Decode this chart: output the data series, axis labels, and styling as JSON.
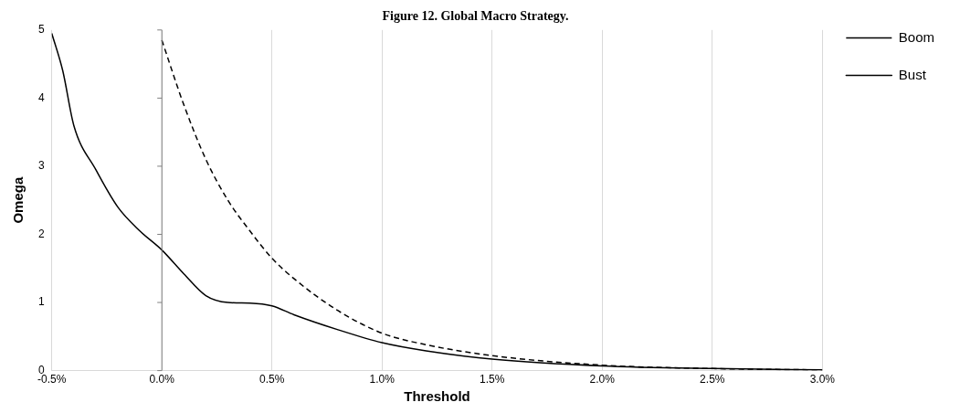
{
  "chart_data": {
    "type": "line",
    "title": "Figure 12. Global Macro Strategy.",
    "xlabel": "Threshold",
    "ylabel": "Omega",
    "xlim": [
      -0.5,
      3.0
    ],
    "xticks": [
      {
        "value": -0.5,
        "label": "-0.5%"
      },
      {
        "value": 0,
        "label": "0.0%"
      },
      {
        "value": 0.5,
        "label": "0.5%"
      },
      {
        "value": 1,
        "label": "1.0%"
      },
      {
        "value": 1.5,
        "label": "1.5%"
      },
      {
        "value": 2,
        "label": "2.0%"
      },
      {
        "value": 2.5,
        "label": "2.5%"
      },
      {
        "value": 3,
        "label": "3.0%"
      }
    ],
    "ylim": [
      0,
      5
    ],
    "yticks": [
      0,
      1,
      2,
      3,
      4,
      5
    ],
    "grid": "x",
    "legend": "top right",
    "marker": "none",
    "ref_lines": [
      {
        "axis": "x",
        "value": 0,
        "color": "#808080"
      }
    ],
    "series": [
      {
        "name": "Boom",
        "color": "#000000",
        "line_style": "dashed",
        "x": [
          0,
          0.1,
          0.2,
          0.3,
          0.4,
          0.5,
          0.6,
          0.8,
          1.0,
          1.2,
          1.5,
          2.0,
          2.5,
          3.0
        ],
        "values": [
          4.85,
          3.9,
          3.1,
          2.5,
          2.05,
          1.65,
          1.35,
          0.88,
          0.55,
          0.38,
          0.22,
          0.08,
          0.03,
          0.01
        ]
      },
      {
        "name": "Bust",
        "color": "#000000",
        "line_style": "solid",
        "x": [
          -0.5,
          -0.45,
          -0.4,
          -0.3,
          -0.2,
          -0.1,
          0,
          0.1,
          0.2,
          0.3,
          0.4,
          0.5,
          0.6,
          0.8,
          1.0,
          1.2,
          1.5,
          2.0,
          2.5,
          3.0
        ],
        "values": [
          4.95,
          4.4,
          3.6,
          2.95,
          2.4,
          2.05,
          1.77,
          1.42,
          1.1,
          1.0,
          0.99,
          0.95,
          0.82,
          0.6,
          0.41,
          0.29,
          0.17,
          0.07,
          0.03,
          0.01
        ]
      }
    ]
  }
}
